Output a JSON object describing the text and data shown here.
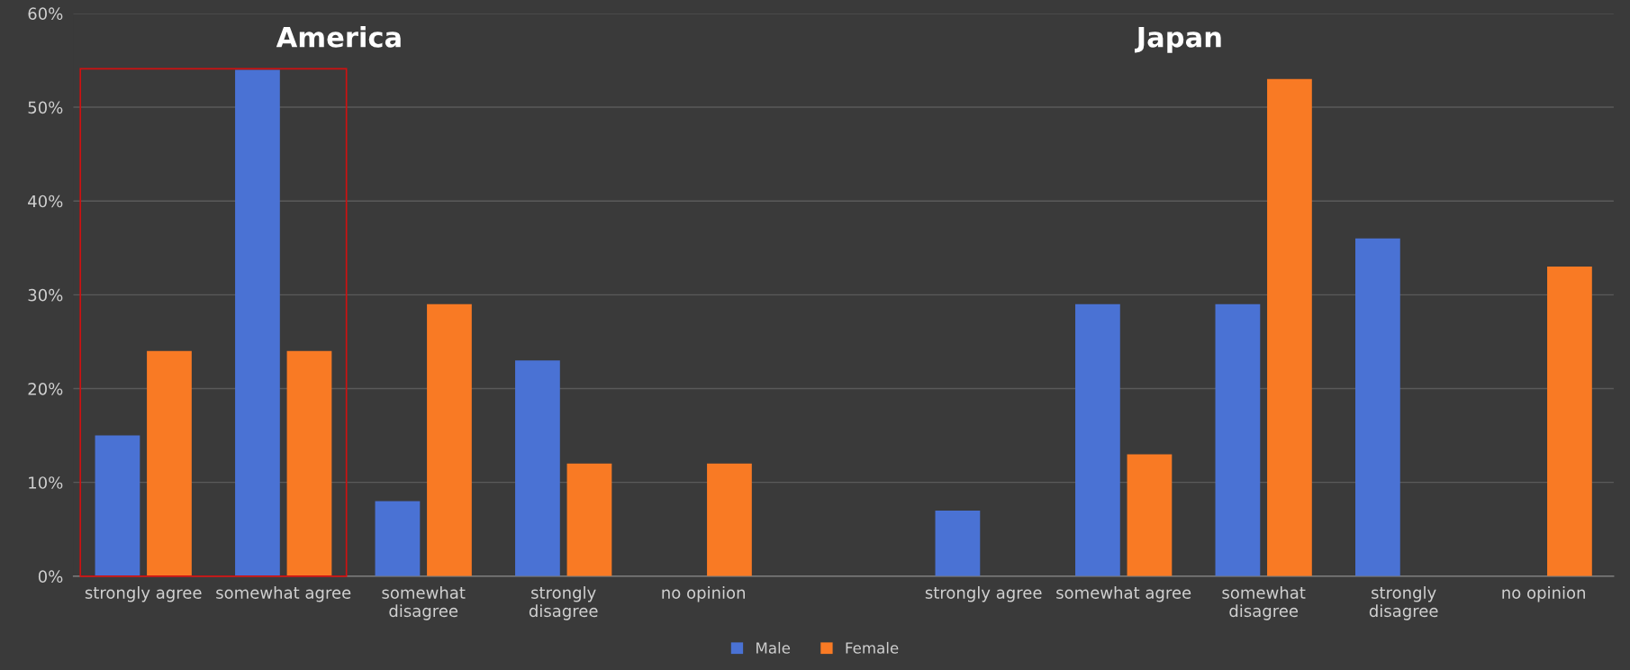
{
  "chart_data": {
    "type": "bar",
    "categories": [
      "strongly agree",
      "somewhat agree",
      "somewhat disagree",
      "strongly disagree",
      "no opinion",
      null,
      "strongly agree",
      "somewhat agree",
      "somewhat disagree",
      "strongly disagree",
      "no opinion"
    ],
    "series": [
      {
        "name": "Male",
        "color": "#4a72d4",
        "values": [
          15,
          54,
          8,
          23,
          null,
          null,
          7,
          29,
          29,
          36,
          null
        ]
      },
      {
        "name": "Female",
        "color": "#f97a24",
        "values": [
          24,
          24,
          29,
          12,
          12,
          null,
          null,
          13,
          53,
          null,
          33
        ]
      }
    ],
    "ylim": [
      0,
      60
    ],
    "yticks": [
      {
        "value": 0,
        "label": "0%"
      },
      {
        "value": 10,
        "label": "10%"
      },
      {
        "value": 20,
        "label": "20%"
      },
      {
        "value": 30,
        "label": "30%"
      },
      {
        "value": 40,
        "label": "40%"
      },
      {
        "value": 50,
        "label": "50%"
      },
      {
        "value": 60,
        "label": "60%"
      }
    ],
    "grid": "y",
    "legend": "bottom",
    "annotations": [
      "America",
      "Japan"
    ]
  }
}
